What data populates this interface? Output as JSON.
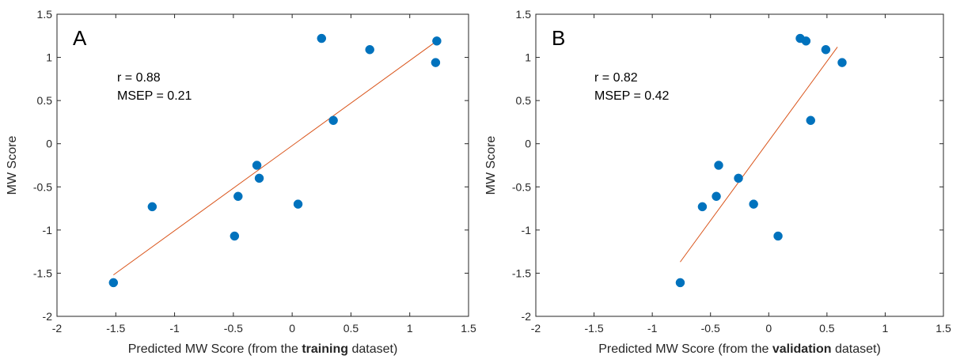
{
  "colors": {
    "marker": "#0072BD",
    "fit_line": "#D95319",
    "axis": "#262626"
  },
  "chart_data": [
    {
      "type": "scatter",
      "panel": "A",
      "r_text": "r = 0.88",
      "msep_text": "MSEP = 0.21",
      "xlabel_prefix": "Predicted MW Score (from the ",
      "xlabel_bold": "training",
      "xlabel_suffix": " dataset)",
      "ylabel": "MW Score",
      "xlim": [
        -2,
        1.5
      ],
      "ylim": [
        -2,
        1.5
      ],
      "xticks": [
        -2,
        -1.5,
        -1,
        -0.5,
        0,
        0.5,
        1,
        1.5
      ],
      "yticks": [
        -2,
        -1.5,
        -1,
        -0.5,
        0,
        0.5,
        1,
        1.5
      ],
      "xtick_labels": [
        "-2",
        "-1.5",
        "-1",
        "-0.5",
        "0",
        "0.5",
        "1",
        "1.5"
      ],
      "ytick_labels": [
        "-2",
        "-1.5",
        "-1",
        "-0.5",
        "0",
        "0.5",
        "1",
        "1.5"
      ],
      "grid": false,
      "points": [
        {
          "x": -1.52,
          "y": -1.61
        },
        {
          "x": -1.19,
          "y": -0.73
        },
        {
          "x": -0.49,
          "y": -1.07
        },
        {
          "x": -0.46,
          "y": -0.61
        },
        {
          "x": -0.3,
          "y": -0.25
        },
        {
          "x": -0.28,
          "y": -0.4
        },
        {
          "x": 0.05,
          "y": -0.7
        },
        {
          "x": 0.25,
          "y": 1.22
        },
        {
          "x": 0.35,
          "y": 0.27
        },
        {
          "x": 0.66,
          "y": 1.09
        },
        {
          "x": 1.22,
          "y": 0.94
        },
        {
          "x": 1.23,
          "y": 1.19
        }
      ],
      "fit_line": {
        "x": [
          -1.52,
          1.23
        ],
        "y": [
          -1.52,
          1.19
        ]
      }
    },
    {
      "type": "scatter",
      "panel": "B",
      "r_text": "r = 0.82",
      "msep_text": "MSEP = 0.42",
      "xlabel_prefix": "Predicted MW Score (from the ",
      "xlabel_bold": "validation",
      "xlabel_suffix": " dataset)",
      "ylabel": "MW Score",
      "xlim": [
        -2,
        1.5
      ],
      "ylim": [
        -2,
        1.5
      ],
      "xticks": [
        -2,
        -1.5,
        -1,
        -0.5,
        0,
        0.5,
        1,
        1.5
      ],
      "yticks": [
        -2,
        -1.5,
        -1,
        -0.5,
        0,
        0.5,
        1,
        1.5
      ],
      "xtick_labels": [
        "-2",
        "-1.5",
        "-1",
        "-0.5",
        "0",
        "0.5",
        "1",
        "1.5"
      ],
      "ytick_labels": [
        "-2",
        "-1.5",
        "-1",
        "-0.5",
        "0",
        "0.5",
        "1",
        "1.5"
      ],
      "grid": false,
      "points": [
        {
          "x": -0.76,
          "y": -1.61
        },
        {
          "x": -0.57,
          "y": -0.73
        },
        {
          "x": -0.45,
          "y": -0.61
        },
        {
          "x": -0.43,
          "y": -0.25
        },
        {
          "x": -0.26,
          "y": -0.4
        },
        {
          "x": -0.13,
          "y": -0.7
        },
        {
          "x": 0.08,
          "y": -1.07
        },
        {
          "x": 0.27,
          "y": 1.22
        },
        {
          "x": 0.32,
          "y": 1.19
        },
        {
          "x": 0.36,
          "y": 0.27
        },
        {
          "x": 0.49,
          "y": 1.09
        },
        {
          "x": 0.63,
          "y": 0.94
        }
      ],
      "fit_line": {
        "x": [
          -0.76,
          0.59
        ],
        "y": [
          -1.37,
          1.12
        ]
      }
    }
  ]
}
